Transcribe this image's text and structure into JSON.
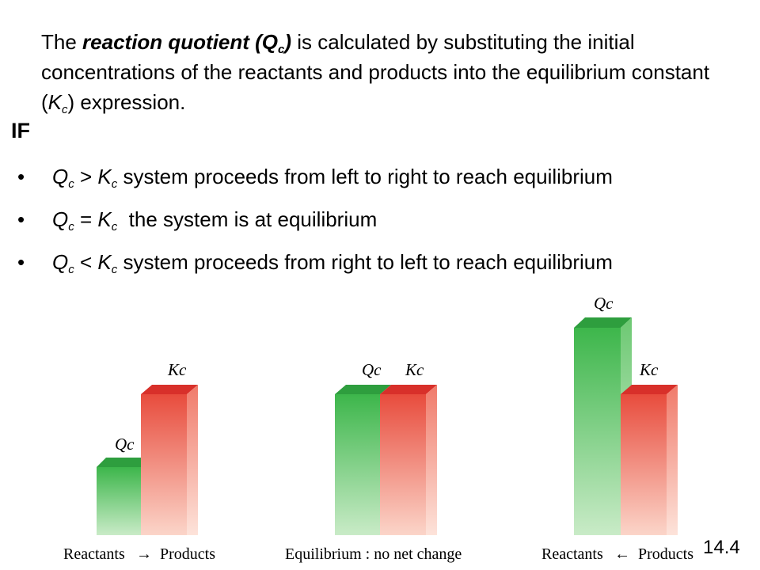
{
  "intro": {
    "p1": "The ",
    "bold_lead": "reaction quotient (Q",
    "bold_sub": "c",
    "bold_tail": ")",
    "p2": " is calculated by substituting the initial concentrations of the reactants and products into the equilibrium constant (",
    "k": "K",
    "k_sub": "c",
    "p3": ") expression."
  },
  "if_heading": "IF",
  "conditions": [
    {
      "q": "Q",
      "q_sub": "c",
      "op": " > ",
      "k": "K",
      "k_sub": "c",
      "text": " system proceeds from left to right to reach equilibrium"
    },
    {
      "q": "Q",
      "q_sub": "c",
      "op": " = ",
      "k": "K",
      "k_sub": "c",
      "text": "  the system is at equilibrium"
    },
    {
      "q": "Q",
      "q_sub": "c",
      "op": " < ",
      "k": "K",
      "k_sub": "c",
      "text": " system proceeds from right to left to reach equilibrium"
    }
  ],
  "figure": {
    "panels": [
      {
        "q_label": "Q",
        "k_label": "K",
        "label_sub": "c",
        "left_word": "Reactants",
        "arrow": "→",
        "right_word": "Products"
      },
      {
        "q_label": "Q",
        "k_label": "K",
        "label_sub": "c",
        "caption": "Equilibrium : no net change"
      },
      {
        "q_label": "Q",
        "k_label": "K",
        "label_sub": "c",
        "left_word": "Reactants",
        "arrow": "←",
        "right_word": "Products"
      }
    ],
    "colors": {
      "green": "#3cb44a",
      "red": "#e53935"
    }
  },
  "slide_number": "14.4"
}
